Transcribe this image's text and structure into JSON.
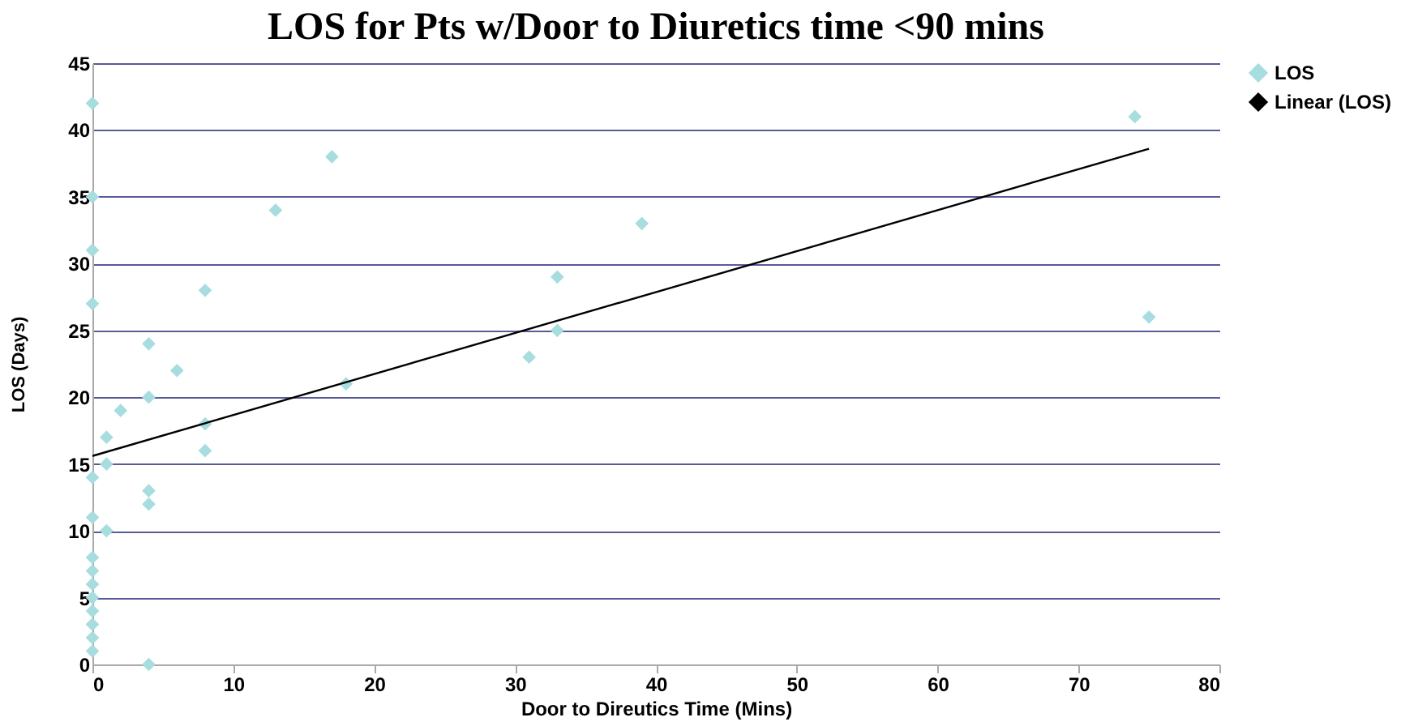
{
  "chart_data": {
    "type": "scatter",
    "title": "LOS for Pts w/Door to Diuretics time <90 mins",
    "xlabel": "Door to Direutics Time (Mins)",
    "ylabel": "LOS (Days)",
    "x": [
      0,
      0,
      0,
      0,
      0,
      0,
      0,
      0,
      0,
      0,
      0,
      0,
      0,
      0,
      1,
      1,
      1,
      2,
      4,
      4,
      4,
      4,
      4,
      6,
      8,
      8,
      8,
      13,
      17,
      18,
      31,
      33,
      33,
      39,
      74,
      75
    ],
    "series": [
      {
        "name": "LOS",
        "color": "#a8dde0",
        "marker": "diamond",
        "values": [
          42,
          35,
          31,
          27,
          14,
          11,
          8,
          7,
          6,
          5,
          4,
          3,
          2,
          1,
          17,
          15,
          10,
          19,
          24,
          20,
          13,
          12,
          0,
          22,
          28,
          18,
          16,
          34,
          38,
          21,
          23,
          29,
          25,
          33,
          41,
          26
        ]
      },
      {
        "name": "Linear (LOS)",
        "type": "line",
        "color": "#000000",
        "x": [
          0,
          75
        ],
        "values": [
          15.6,
          38.6
        ]
      }
    ],
    "xlim": [
      0,
      80
    ],
    "xticks": [
      0,
      10,
      20,
      30,
      40,
      50,
      60,
      70,
      80
    ],
    "ylim": [
      0,
      45
    ],
    "yticks": [
      0,
      5,
      10,
      15,
      20,
      25,
      30,
      35,
      40,
      45
    ],
    "grid": "y",
    "legend": "right"
  }
}
